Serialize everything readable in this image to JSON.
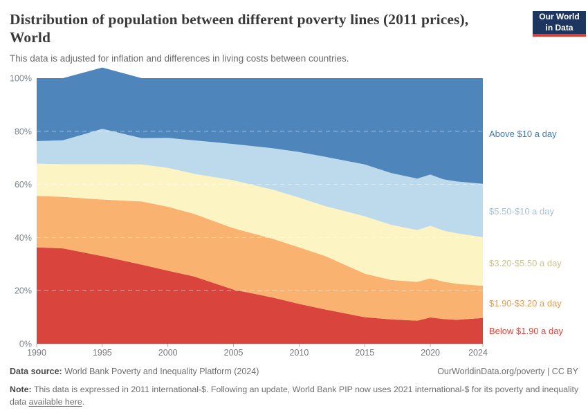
{
  "header": {
    "title_line1": "Distribution of population between different poverty lines (2011 prices),",
    "title_line2": "World",
    "subtitle": "This data is adjusted for inflation and differences in living costs between countries.",
    "logo": {
      "line1": "Our World",
      "line2": "in Data",
      "bg_color": "#1d3660",
      "bar_color": "#e13d33"
    }
  },
  "chart_data": {
    "type": "area",
    "stacked": true,
    "title": "Distribution of population between different poverty lines (2011 prices), World",
    "unit": "%",
    "ylim": [
      0,
      100
    ],
    "x_range": [
      1990,
      2024
    ],
    "grid": "dashed horizontal at 20/40/60/80",
    "legend_position": "right edge labels",
    "x": [
      1990,
      1992,
      1995,
      1998,
      2000,
      2002,
      2005,
      2008,
      2010,
      2012,
      2015,
      2017,
      2019,
      2020,
      2021,
      2022,
      2024
    ],
    "x_ticks": [
      1990,
      1995,
      2000,
      2005,
      2010,
      2015,
      2020,
      2024
    ],
    "y_ticks": [
      0,
      20,
      40,
      60,
      80,
      100
    ],
    "series": [
      {
        "name": "below-1-90",
        "label": "Below $1.90 a day",
        "color": "#d9453c",
        "label_color": "#d8453c",
        "values": [
          36.3,
          35.9,
          33.0,
          29.8,
          27.5,
          25.3,
          20.4,
          17.4,
          15.0,
          12.9,
          10.0,
          9.2,
          8.7,
          9.9,
          9.3,
          9.0,
          9.7
        ]
      },
      {
        "name": "1-90-to-3-20",
        "label": "$1.90-$3.20 a day",
        "color": "#f9b26f",
        "label_color": "#e09d57",
        "values": [
          19.4,
          19.4,
          21.3,
          23.8,
          24.1,
          23.6,
          23.1,
          22.1,
          21.3,
          20.1,
          16.4,
          14.8,
          14.6,
          14.7,
          14.1,
          13.6,
          12.1
        ]
      },
      {
        "name": "3-20-to-5-50",
        "label": "$3.20-$5.50 a day",
        "color": "#fdf4c4",
        "label_color": "#cbc492",
        "values": [
          12.1,
          12.3,
          13.3,
          13.9,
          14.6,
          15.1,
          18.0,
          18.5,
          18.7,
          18.8,
          21.6,
          20.8,
          19.5,
          19.8,
          19.2,
          19.0,
          18.3
        ]
      },
      {
        "name": "5-50-to-10",
        "label": "$5.50-$10 a day",
        "color": "#bcdaeb",
        "label_color": "#a4c4db",
        "values": [
          8.5,
          9.0,
          13.3,
          9.9,
          11.3,
          12.6,
          13.7,
          15.6,
          17.2,
          18.6,
          19.5,
          19.5,
          19.4,
          19.3,
          19.3,
          19.5,
          20.1
        ]
      },
      {
        "name": "above-10",
        "label": "Above $10 a day",
        "color": "#4e86bc",
        "label_color": "#3d7cb8",
        "values": [
          23.7,
          23.4,
          23.1,
          22.6,
          22.5,
          23.4,
          24.8,
          26.4,
          27.8,
          29.6,
          32.5,
          35.7,
          37.8,
          36.3,
          38.1,
          38.9,
          39.8
        ]
      }
    ],
    "band_label_y_centers": [
      479,
      439,
      381,
      306,
      194
    ]
  },
  "footer": {
    "source_label": "Data source:",
    "source_text": " World Bank Poverty and Inequality Platform (2024)",
    "attribution": "OurWorldinData.org/poverty | CC BY",
    "note_label": "Note:",
    "note_text": " This data is expressed in 2011 international-$. Following an update, World Bank PIP now uses 2021 international-$ for its poverty and inequality data ",
    "note_link": "available here",
    "note_suffix": "."
  }
}
